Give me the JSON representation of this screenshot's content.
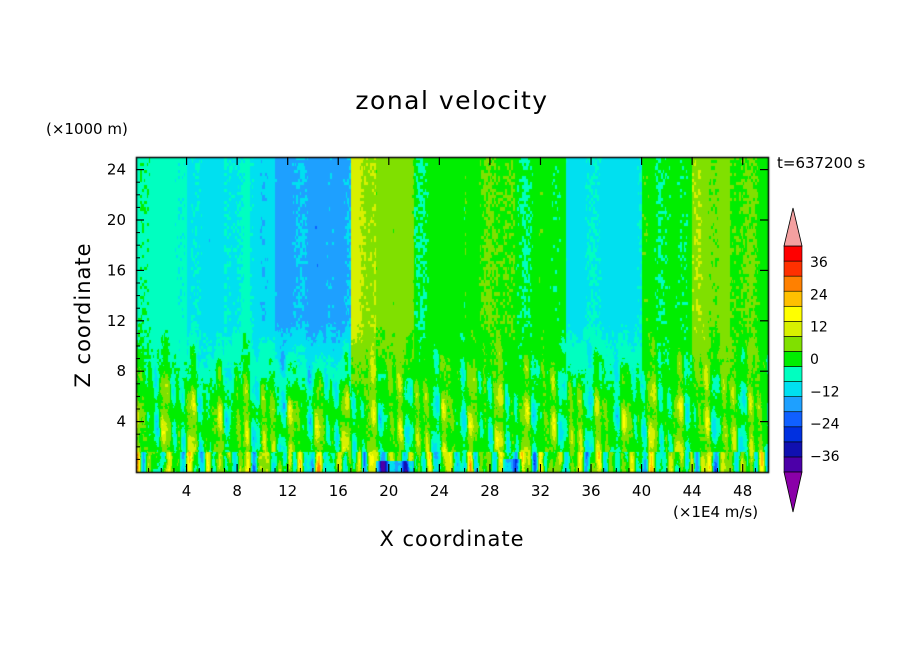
{
  "chart_data": {
    "type": "heatmap",
    "title": "zonal velocity",
    "xlabel": "X coordinate",
    "ylabel": "Z coordinate",
    "x_unit_label": "(×1E4 m/s)",
    "y_unit_label": "(×1000 m)",
    "time_label": "t=637200 s",
    "xlim": [
      0,
      50
    ],
    "ylim": [
      0,
      25
    ],
    "x_ticks": [
      4,
      8,
      12,
      16,
      20,
      24,
      28,
      32,
      36,
      40,
      44,
      48
    ],
    "y_ticks": [
      4,
      8,
      12,
      16,
      20,
      24
    ],
    "colorbar": {
      "tick_labels": [
        "36",
        "24",
        "12",
        "0",
        "−12",
        "−24",
        "−36"
      ],
      "tick_values": [
        36,
        24,
        12,
        0,
        -12,
        -24,
        -36
      ],
      "levels": [
        -42,
        -36,
        -30,
        -24,
        -18,
        -12,
        -6,
        0,
        6,
        12,
        18,
        24,
        30,
        36,
        42
      ],
      "colors": [
        "#4c00a8",
        "#1010b0",
        "#0030e0",
        "#1060ff",
        "#1ea0ff",
        "#00e0f0",
        "#00ffc0",
        "#00ee00",
        "#80e000",
        "#d8f000",
        "#ffff00",
        "#ffc000",
        "#ff8000",
        "#ff3000",
        "#ff0000"
      ],
      "under_color": "#8a00a8",
      "over_color": "#f4a0a0"
    },
    "upper_layer_bands": [
      {
        "x_range": [
          0,
          4
        ],
        "value": -3
      },
      {
        "x_range": [
          4,
          7
        ],
        "value": -9
      },
      {
        "x_range": [
          7,
          9
        ],
        "value": -6
      },
      {
        "x_range": [
          9,
          11
        ],
        "value": -9
      },
      {
        "x_range": [
          11,
          17
        ],
        "value": -14
      },
      {
        "x_range": [
          17,
          19
        ],
        "value": 13
      },
      {
        "x_range": [
          19,
          22
        ],
        "value": 8
      },
      {
        "x_range": [
          22,
          26
        ],
        "value": 2
      },
      {
        "x_range": [
          26,
          30
        ],
        "value": 5
      },
      {
        "x_range": [
          30,
          34
        ],
        "value": 2
      },
      {
        "x_range": [
          34,
          40
        ],
        "value": -8
      },
      {
        "x_range": [
          40,
          44
        ],
        "value": 2
      },
      {
        "x_range": [
          44,
          47
        ],
        "value": 9
      },
      {
        "x_range": [
          47,
          50
        ],
        "value": 5
      }
    ]
  }
}
